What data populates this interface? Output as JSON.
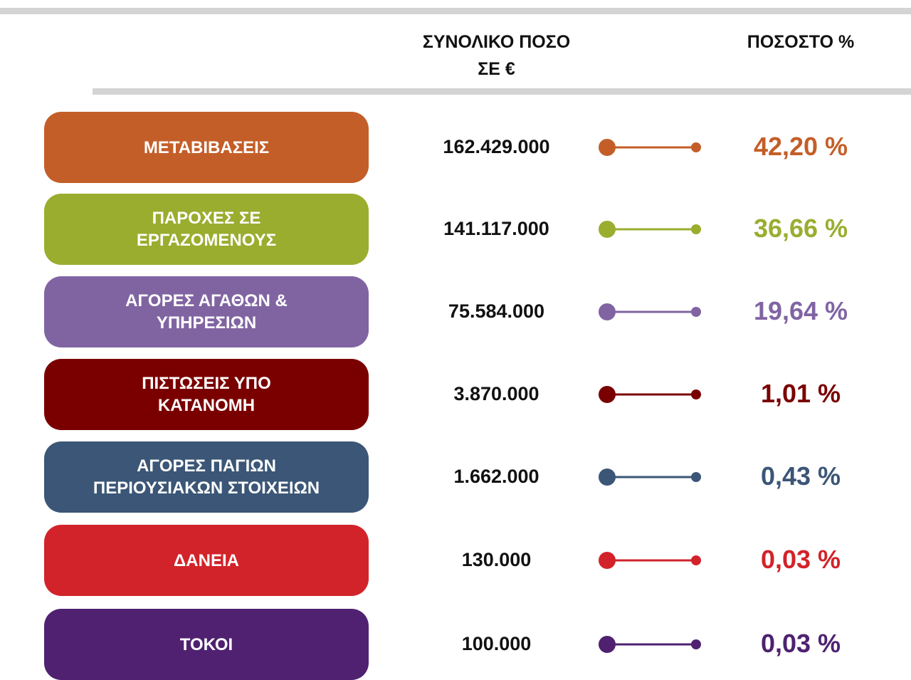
{
  "header": {
    "columns": [
      [
        "ΣΥΝΟΛΙΚΟ ΠΟΣΟ",
        "ΣΕ  €"
      ],
      [
        "ΠΟΣΟΣΤΟ %"
      ]
    ]
  },
  "table": {
    "rows": [
      {
        "label": [
          "ΜΕΤΑΒΙΒΑΣΕΙΣ"
        ],
        "amount": "162.429.000",
        "percent": "42,20 %",
        "color": "#c45e28"
      },
      {
        "label": [
          "ΠΑΡΟΧΕΣ ΣΕ",
          "ΕΡΓΑΖΟΜΕΝΟΥΣ"
        ],
        "amount": "141.117.000",
        "percent": "36,66 %",
        "color": "#9aad2f"
      },
      {
        "label": [
          "ΑΓΟΡΕΣ ΑΓΑΘΩΝ &",
          "ΥΠΗΡΕΣΙΩΝ"
        ],
        "amount": "75.584.000",
        "percent": "19,64 %",
        "color": "#8064a2"
      },
      {
        "label": [
          "ΠΙΣΤΩΣΕΙΣ ΥΠΟ",
          "ΚΑΤΑΝΟΜΗ"
        ],
        "amount": "3.870.000",
        "percent": "1,01 %",
        "color": "#7a0000"
      },
      {
        "label": [
          "ΑΓΟΡΕΣ ΠΑΓΙΩΝ",
          "ΠΕΡΙΟΥΣΙΑΚΩΝ ΣΤΟΙΧΕΙΩΝ"
        ],
        "amount": "1.662.000",
        "percent": "0,43 %",
        "color": "#3b5676"
      },
      {
        "label": [
          "ΔΑΝΕΙΑ"
        ],
        "amount": "130.000",
        "percent": "0,03 %",
        "color": "#d2232a"
      },
      {
        "label": [
          "ΤΟΚΟΙ"
        ],
        "amount": "100.000",
        "percent": "0,03 %",
        "color": "#4f2170"
      }
    ]
  }
}
